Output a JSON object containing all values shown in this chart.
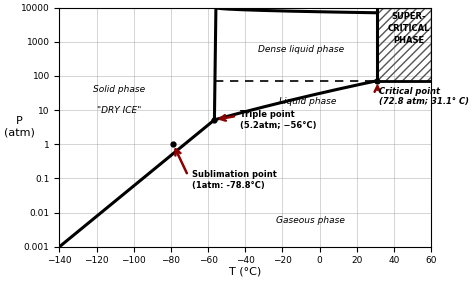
{
  "xlim": [
    -140,
    60
  ],
  "ylim_log": [
    0.001,
    10000
  ],
  "xticks": [
    -140,
    -120,
    -100,
    -80,
    -60,
    -40,
    -20,
    0,
    20,
    40,
    60
  ],
  "yticks": [
    0.001,
    0.01,
    0.1,
    1,
    10,
    100,
    1000,
    10000
  ],
  "ytick_labels": [
    "0.001",
    "0.01",
    "0.1",
    "1",
    "10",
    "100",
    "1000",
    "10000"
  ],
  "triple_T": -56.6,
  "triple_P": 5.2,
  "critical_T": 31.1,
  "critical_P": 72.8,
  "sublimation_T": -78.8,
  "sublimation_P": 1.0,
  "background_color": "#ffffff",
  "line_color": "#000000",
  "arrow_color": "#8B0000",
  "xlabel": "T (°C)",
  "ylabel": "P\n(atm)"
}
